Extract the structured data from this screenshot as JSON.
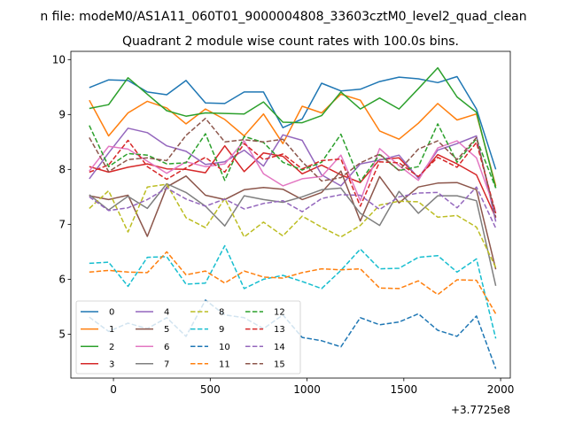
{
  "chart_data": {
    "type": "line",
    "suptitle": "n file: modeM0/AS1A11_060T01_9000004808_33603cztM0_level2_quad_clean",
    "title": "Quadrant 2 module wise count rates with 100.0s bins.",
    "xlabel": "",
    "ylabel": "",
    "x_offset_label": "+3.7725e8",
    "xlim": [
      -220,
      2050
    ],
    "ylim": [
      4.2,
      10.15
    ],
    "xticks": [
      0,
      500,
      1000,
      1500,
      2000
    ],
    "yticks": [
      5,
      6,
      7,
      8,
      9,
      10
    ],
    "grid": false,
    "legend_position": "lower-left",
    "legend_columns": 4,
    "x": [
      -125,
      -25,
      75,
      175,
      275,
      375,
      475,
      575,
      675,
      775,
      875,
      975,
      1075,
      1175,
      1275,
      1375,
      1475,
      1575,
      1675,
      1775,
      1875,
      1975
    ],
    "series": [
      {
        "name": "0",
        "color": "#1f77b4",
        "dash": "solid",
        "values": [
          9.49,
          9.63,
          9.62,
          9.41,
          9.36,
          9.62,
          9.21,
          9.2,
          9.41,
          9.41,
          8.76,
          8.92,
          9.57,
          9.43,
          9.46,
          9.6,
          9.68,
          9.65,
          9.58,
          9.69,
          9.1,
          8.0
        ]
      },
      {
        "name": "1",
        "color": "#ff7f0e",
        "dash": "solid",
        "values": [
          9.26,
          8.61,
          9.03,
          9.24,
          9.12,
          8.83,
          9.1,
          8.91,
          8.61,
          9.01,
          8.47,
          9.15,
          9.03,
          9.37,
          9.26,
          8.7,
          8.55,
          8.84,
          9.2,
          8.9,
          9.01,
          7.7
        ]
      },
      {
        "name": "2",
        "color": "#2ca02c",
        "dash": "solid",
        "values": [
          9.11,
          9.18,
          9.67,
          9.37,
          9.07,
          8.97,
          9.03,
          9.02,
          9.01,
          9.23,
          8.86,
          8.85,
          8.98,
          9.41,
          9.1,
          9.3,
          9.1,
          9.47,
          9.85,
          9.32,
          9.04,
          7.66
        ]
      },
      {
        "name": "3",
        "color": "#d62728",
        "dash": "solid",
        "values": [
          8.05,
          7.95,
          8.04,
          8.1,
          8.01,
          8.0,
          7.94,
          8.43,
          7.96,
          8.3,
          8.24,
          7.92,
          8.08,
          7.9,
          7.76,
          8.18,
          8.21,
          7.85,
          8.27,
          8.1,
          7.9,
          7.12
        ]
      },
      {
        "name": "4",
        "color": "#9467bd",
        "dash": "solid",
        "values": [
          7.83,
          8.3,
          8.75,
          8.67,
          8.43,
          8.33,
          8.09,
          8.14,
          8.35,
          8.06,
          8.63,
          8.53,
          7.9,
          7.7,
          8.1,
          8.17,
          8.26,
          7.84,
          8.35,
          8.47,
          8.61,
          7.05
        ]
      },
      {
        "name": "5",
        "color": "#8c564b",
        "dash": "solid",
        "values": [
          7.52,
          7.45,
          7.53,
          6.78,
          7.68,
          7.88,
          7.53,
          7.45,
          7.63,
          7.67,
          7.64,
          7.45,
          7.58,
          7.97,
          7.06,
          7.87,
          7.39,
          7.68,
          7.75,
          7.76,
          7.63,
          6.18
        ]
      },
      {
        "name": "6",
        "color": "#e377c2",
        "dash": "solid",
        "values": [
          7.97,
          8.42,
          8.37,
          8.15,
          7.93,
          8.14,
          8.05,
          8.1,
          8.52,
          7.92,
          7.7,
          7.83,
          7.87,
          8.26,
          7.43,
          8.38,
          8.07,
          7.8,
          8.39,
          8.52,
          8.21,
          7.23
        ]
      },
      {
        "name": "7",
        "color": "#7f7f7f",
        "dash": "solid",
        "values": [
          7.54,
          7.26,
          7.51,
          7.29,
          7.74,
          7.58,
          7.33,
          6.97,
          7.52,
          7.45,
          7.4,
          7.5,
          7.63,
          7.66,
          7.2,
          6.98,
          7.6,
          7.2,
          7.52,
          7.52,
          7.43,
          5.88
        ]
      },
      {
        "name": "8",
        "color": "#bcbd22",
        "dash": "dashed",
        "values": [
          7.29,
          7.61,
          6.86,
          7.68,
          7.73,
          7.12,
          6.94,
          7.47,
          6.77,
          7.04,
          6.79,
          7.15,
          6.95,
          6.77,
          6.98,
          7.35,
          7.42,
          7.41,
          7.13,
          7.16,
          6.95,
          6.21
        ]
      },
      {
        "name": "9",
        "color": "#17becf",
        "dash": "dashed",
        "values": [
          6.29,
          6.31,
          5.87,
          6.4,
          6.41,
          5.91,
          5.93,
          6.61,
          5.83,
          6.0,
          6.07,
          5.96,
          5.83,
          6.16,
          6.55,
          6.19,
          6.2,
          6.4,
          6.43,
          6.13,
          6.37,
          4.92
        ]
      },
      {
        "name": "10",
        "color": "#1f77b4",
        "dash": "dashed",
        "values": [
          5.31,
          5.05,
          5.2,
          5.1,
          5.3,
          4.96,
          5.62,
          5.35,
          5.3,
          5.1,
          5.35,
          4.94,
          4.88,
          4.77,
          5.3,
          5.17,
          5.22,
          5.37,
          5.07,
          4.96,
          5.33,
          4.37
        ]
      },
      {
        "name": "11",
        "color": "#ff7f0e",
        "dash": "dashed",
        "values": [
          6.13,
          6.16,
          6.13,
          6.12,
          6.5,
          6.08,
          6.15,
          5.93,
          6.15,
          6.04,
          6.02,
          6.12,
          6.19,
          6.17,
          6.19,
          5.84,
          5.83,
          5.97,
          5.72,
          5.99,
          5.98,
          5.37
        ]
      },
      {
        "name": "12",
        "color": "#2ca02c",
        "dash": "dashed",
        "values": [
          8.8,
          8.05,
          8.29,
          8.26,
          8.1,
          8.12,
          8.65,
          7.8,
          8.6,
          8.49,
          8.13,
          7.99,
          8.13,
          8.64,
          7.78,
          8.27,
          7.98,
          8.05,
          8.83,
          8.13,
          8.56,
          7.66
        ]
      },
      {
        "name": "13",
        "color": "#d62728",
        "dash": "dashed",
        "values": [
          7.95,
          8.08,
          8.53,
          8.05,
          7.82,
          8.03,
          8.22,
          7.95,
          8.47,
          8.18,
          8.28,
          8.01,
          8.16,
          8.19,
          7.33,
          8.14,
          8.12,
          7.87,
          8.22,
          8.04,
          8.49,
          7.2
        ]
      },
      {
        "name": "14",
        "color": "#9467bd",
        "dash": "dashed",
        "values": [
          7.5,
          7.25,
          7.3,
          7.45,
          7.66,
          7.46,
          7.33,
          7.46,
          7.28,
          7.38,
          7.43,
          7.23,
          7.47,
          7.54,
          7.53,
          7.27,
          7.5,
          7.57,
          7.58,
          7.3,
          7.68,
          6.93
        ]
      },
      {
        "name": "15",
        "color": "#8c564b",
        "dash": "dashed",
        "values": [
          8.58,
          7.96,
          8.18,
          8.21,
          8.16,
          8.62,
          8.93,
          8.5,
          8.54,
          8.5,
          8.55,
          8.14,
          7.79,
          7.85,
          8.12,
          8.28,
          7.98,
          8.37,
          8.52,
          8.18,
          8.58,
          7.13
        ]
      }
    ]
  }
}
